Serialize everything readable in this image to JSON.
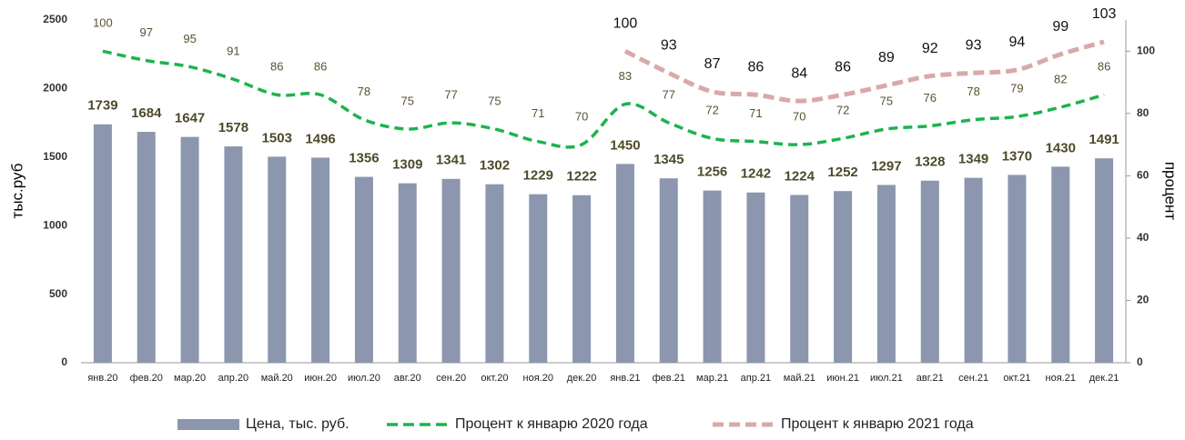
{
  "chart_data": {
    "type": "bar",
    "categories": [
      "янв.20",
      "фев.20",
      "мар.20",
      "апр.20",
      "май.20",
      "июн.20",
      "июл.20",
      "авг.20",
      "сен.20",
      "окт.20",
      "ноя.20",
      "дек.20",
      "янв.21",
      "фев.21",
      "мар.21",
      "апр.21",
      "май.21",
      "июн.21",
      "июл.21",
      "авг.21",
      "сен.21",
      "окт.21",
      "ноя.21",
      "дек.21"
    ],
    "series": [
      {
        "name": "Цена, тыс. руб.",
        "type": "bar",
        "color": "#8c96ae",
        "values": [
          1739,
          1684,
          1647,
          1578,
          1503,
          1496,
          1356,
          1309,
          1341,
          1302,
          1229,
          1222,
          1450,
          1345,
          1256,
          1242,
          1224,
          1252,
          1297,
          1328,
          1349,
          1370,
          1430,
          1491
        ]
      },
      {
        "name": "Процент к январю 2020 года",
        "type": "line",
        "axis": "y2",
        "color": "#1db34f",
        "values": [
          100,
          97,
          95,
          91,
          86,
          86,
          78,
          75,
          77,
          75,
          71,
          70,
          83,
          77,
          72,
          71,
          70,
          72,
          75,
          76,
          78,
          79,
          82,
          86
        ]
      },
      {
        "name": "Процент к январю 2021 года",
        "type": "line",
        "axis": "y2",
        "color": "#d9a9a9",
        "values": [
          null,
          null,
          null,
          null,
          null,
          null,
          null,
          null,
          null,
          null,
          null,
          null,
          100,
          93,
          87,
          86,
          84,
          86,
          89,
          92,
          93,
          94,
          99,
          103
        ]
      }
    ],
    "y_label": "тыс.руб",
    "y2_label": "процент",
    "ylim": [
      0,
      2500
    ],
    "yticks": [
      0,
      500,
      1000,
      1500,
      2000,
      2500
    ],
    "y2lim": [
      0,
      110
    ],
    "y2ticks": [
      0,
      20,
      40,
      60,
      80,
      100
    ],
    "legend": "bottom"
  }
}
